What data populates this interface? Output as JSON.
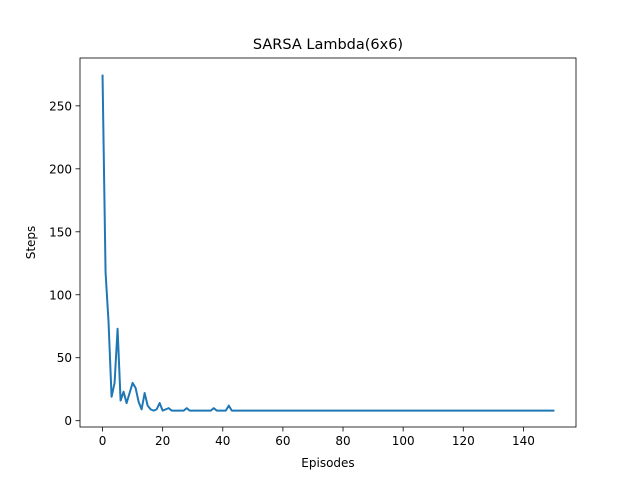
{
  "chart_data": {
    "type": "line",
    "title": "SARSA Lambda(6x6)",
    "xlabel": "Episodes",
    "ylabel": "Steps",
    "xlim": [
      -7.5,
      157.5
    ],
    "ylim": [
      -5,
      288
    ],
    "xticks": [
      0,
      20,
      40,
      60,
      80,
      100,
      120,
      140
    ],
    "yticks": [
      0,
      50,
      100,
      150,
      200,
      250
    ],
    "grid": false,
    "series": [
      {
        "color": "#1f77b4",
        "x": [
          0,
          1,
          2,
          3,
          4,
          5,
          6,
          7,
          8,
          9,
          10,
          11,
          12,
          13,
          14,
          15,
          16,
          17,
          18,
          19,
          20,
          21,
          22,
          23,
          24,
          25,
          26,
          27,
          28,
          29,
          30,
          31,
          32,
          33,
          34,
          35,
          36,
          37,
          38,
          39,
          40,
          41,
          42,
          43,
          44,
          45,
          46,
          47,
          48,
          49,
          50,
          51,
          52,
          53,
          54,
          55,
          56,
          57,
          58,
          59,
          60,
          61,
          62,
          63,
          64,
          65,
          66,
          67,
          68,
          69,
          70,
          71,
          72,
          73,
          74,
          75,
          76,
          77,
          78,
          79,
          80,
          81,
          82,
          83,
          84,
          85,
          86,
          87,
          88,
          89,
          90,
          91,
          92,
          93,
          94,
          95,
          96,
          97,
          98,
          99,
          100,
          101,
          102,
          103,
          104,
          105,
          106,
          107,
          108,
          109,
          110,
          111,
          112,
          113,
          114,
          115,
          116,
          117,
          118,
          119,
          120,
          121,
          122,
          123,
          124,
          125,
          126,
          127,
          128,
          129,
          130,
          131,
          132,
          133,
          134,
          135,
          136,
          137,
          138,
          139,
          140,
          141,
          142,
          143,
          144,
          145,
          146,
          147,
          148,
          149,
          150
        ],
        "y": [
          274,
          118,
          78,
          19,
          30,
          73,
          16,
          23,
          14,
          22,
          30,
          26,
          15,
          9,
          22,
          12,
          9,
          8,
          9,
          14,
          8,
          9,
          10,
          8,
          8,
          8,
          8,
          8,
          10,
          8,
          8,
          8,
          8,
          8,
          8,
          8,
          8,
          10,
          8,
          8,
          8,
          8,
          12,
          8,
          8,
          8,
          8,
          8,
          8,
          8,
          8,
          8,
          8,
          8,
          8,
          8,
          8,
          8,
          8,
          8,
          8,
          8,
          8,
          8,
          8,
          8,
          8,
          8,
          8,
          8,
          8,
          8,
          8,
          8,
          8,
          8,
          8,
          8,
          8,
          8,
          8,
          8,
          8,
          8,
          8,
          8,
          8,
          8,
          8,
          8,
          8,
          8,
          8,
          8,
          8,
          8,
          8,
          8,
          8,
          8,
          8,
          8,
          8,
          8,
          8,
          8,
          8,
          8,
          8,
          8,
          8,
          8,
          8,
          8,
          8,
          8,
          8,
          8,
          8,
          8,
          8,
          8,
          8,
          8,
          8,
          8,
          8,
          8,
          8,
          8,
          8,
          8,
          8,
          8,
          8,
          8,
          8,
          8,
          8,
          8,
          8,
          8,
          8,
          8,
          8,
          8,
          8,
          8,
          8,
          8,
          8
        ]
      }
    ]
  }
}
